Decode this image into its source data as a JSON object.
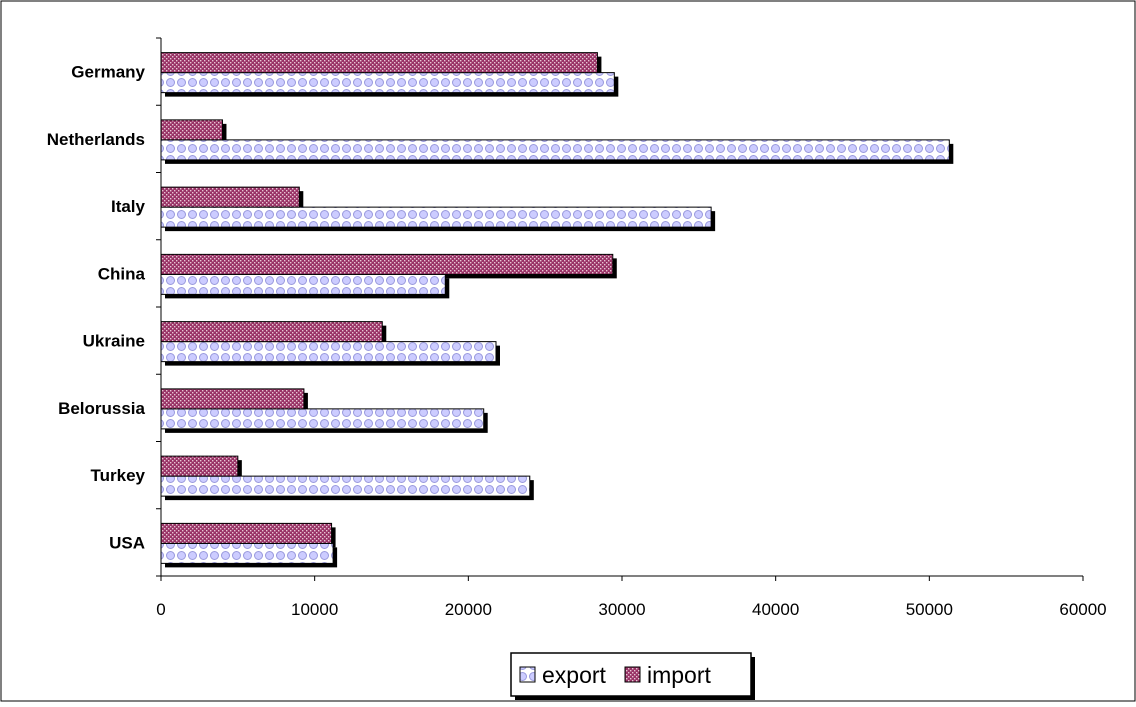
{
  "chart_data": {
    "type": "bar",
    "orientation": "horizontal",
    "categories": [
      "Germany",
      "Netherlands",
      "Italy",
      "China",
      "Ukraine",
      "Belorussia",
      "Turkey",
      "USA"
    ],
    "series": [
      {
        "name": "export",
        "values": [
          29500,
          51300,
          35800,
          18500,
          21800,
          21000,
          24000,
          11200
        ],
        "color": "#ccccff",
        "pattern_color": "#9999dd"
      },
      {
        "name": "import",
        "values": [
          28400,
          4000,
          9000,
          29400,
          14400,
          9300,
          5000,
          11100
        ],
        "color": "#993366",
        "pattern_color": "#e8c6d4"
      }
    ],
    "xlim": [
      0,
      60000
    ],
    "xticks": [
      0,
      10000,
      20000,
      30000,
      40000,
      50000,
      60000
    ],
    "title": "",
    "xlabel": "",
    "ylabel": "",
    "grid": false,
    "legend_position": "bottom"
  }
}
